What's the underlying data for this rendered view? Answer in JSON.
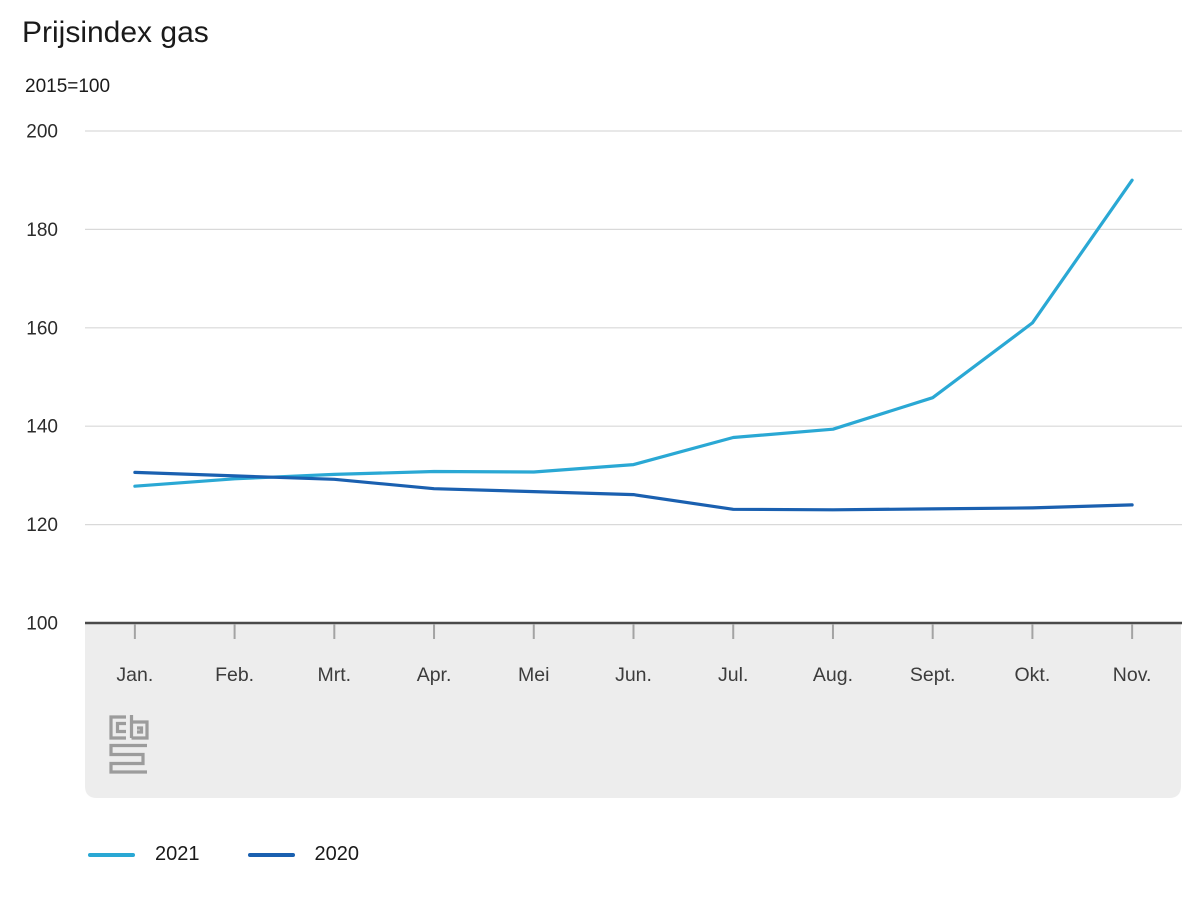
{
  "chart_data": {
    "type": "line",
    "title": "Prijsindex gas",
    "subtitle": "2015=100",
    "xlabel": "",
    "ylabel": "2015=100",
    "categories": [
      "Jan.",
      "Feb.",
      "Mrt.",
      "Apr.",
      "Mei",
      "Jun.",
      "Jul.",
      "Aug.",
      "Sept.",
      "Okt.",
      "Nov."
    ],
    "series": [
      {
        "name": "2021",
        "color": "#2AA8D4",
        "values": [
          127.8,
          129.3,
          130.2,
          130.8,
          130.7,
          132.2,
          137.7,
          139.4,
          145.8,
          161.0,
          190.0
        ]
      },
      {
        "name": "2020",
        "color": "#1A60B0",
        "values": [
          130.6,
          129.9,
          129.2,
          127.3,
          126.7,
          126.1,
          123.1,
          123.0,
          123.2,
          123.4,
          124.0
        ]
      }
    ],
    "ylim": [
      100,
      200
    ],
    "y_ticks": [
      100,
      120,
      140,
      160,
      180,
      200
    ],
    "grid": true,
    "legend_position": "bottom",
    "logo": "cbs"
  }
}
